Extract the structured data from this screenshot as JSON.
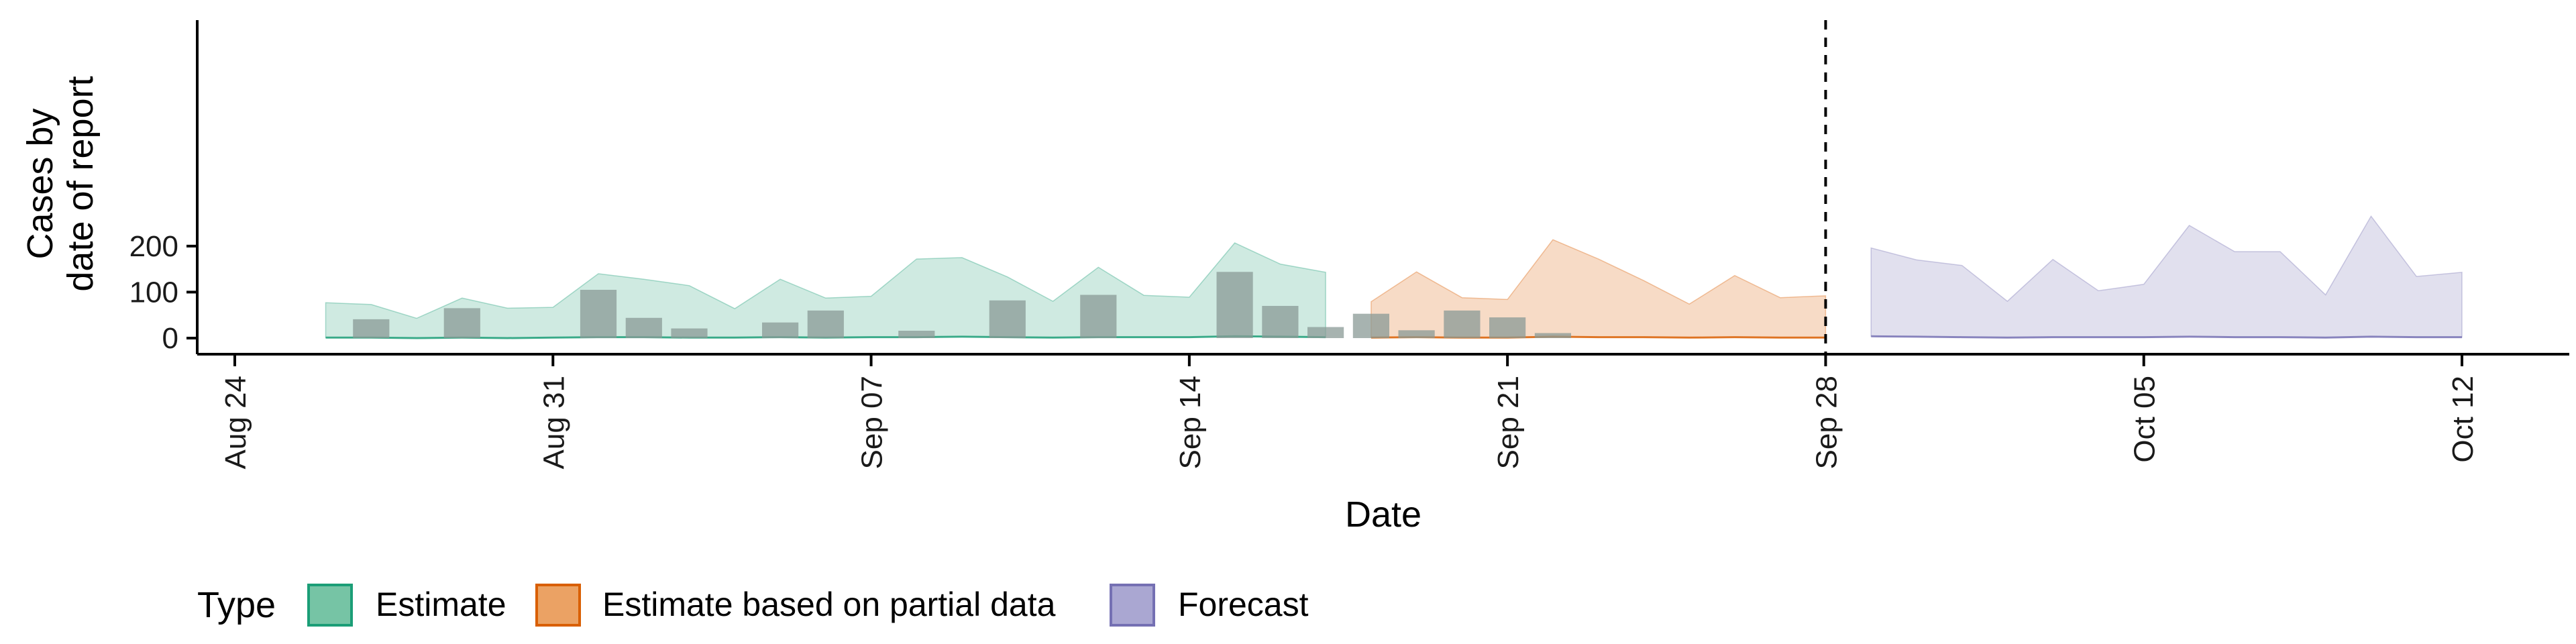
{
  "chart_data": {
    "type": "area",
    "xlabel": "Date",
    "ylabel_lines": [
      "Cases by",
      "date of report"
    ],
    "x_ticks": [
      {
        "date": "2020-08-24",
        "label": "Aug 24"
      },
      {
        "date": "2020-08-31",
        "label": "Aug 31"
      },
      {
        "date": "2020-09-07",
        "label": "Sep 07"
      },
      {
        "date": "2020-09-14",
        "label": "Sep 14"
      },
      {
        "date": "2020-09-21",
        "label": "Sep 21"
      },
      {
        "date": "2020-09-28",
        "label": "Sep 28"
      },
      {
        "date": "2020-10-05",
        "label": "Oct 05"
      },
      {
        "date": "2020-10-12",
        "label": "Oct 12"
      }
    ],
    "y_ticks": [
      0,
      100,
      200
    ],
    "xlim": [
      "2020-08-24",
      "2020-10-12"
    ],
    "ylim": [
      0,
      280
    ],
    "forecast_date": "2020-09-28",
    "legend_title": "Type",
    "legend_position": "bottom",
    "series": [
      {
        "name": "Estimate",
        "color": "#1b9e77",
        "fill": "#cfeae1",
        "dates": [
          "2020-08-26",
          "2020-08-27",
          "2020-08-28",
          "2020-08-29",
          "2020-08-30",
          "2020-08-31",
          "2020-09-01",
          "2020-09-02",
          "2020-09-03",
          "2020-09-04",
          "2020-09-05",
          "2020-09-06",
          "2020-09-07",
          "2020-09-08",
          "2020-09-09",
          "2020-09-10",
          "2020-09-11",
          "2020-09-12",
          "2020-09-13",
          "2020-09-14",
          "2020-09-15",
          "2020-09-16",
          "2020-09-17"
        ],
        "upper": [
          77,
          73,
          43,
          87,
          65,
          67,
          140,
          128,
          114,
          64,
          128,
          87,
          91,
          172,
          175,
          133,
          80,
          154,
          93,
          89,
          207,
          161,
          143
        ],
        "lower": [
          1,
          1,
          0,
          1,
          0,
          1,
          2,
          2,
          1,
          1,
          2,
          1,
          2,
          2,
          3,
          2,
          1,
          2,
          2,
          2,
          4,
          3,
          2
        ]
      },
      {
        "name": "Estimate based on partial data",
        "color": "#d95f02",
        "fill": "#f7dbc6",
        "dates": [
          "2020-09-18",
          "2020-09-19",
          "2020-09-20",
          "2020-09-21",
          "2020-09-22",
          "2020-09-23",
          "2020-09-24",
          "2020-09-25",
          "2020-09-26",
          "2020-09-27",
          "2020-09-28"
        ],
        "upper": [
          79,
          144,
          88,
          84,
          214,
          172,
          125,
          74,
          136,
          88,
          92
        ],
        "lower": [
          1,
          2,
          1,
          1,
          3,
          2,
          2,
          1,
          2,
          1,
          1
        ]
      },
      {
        "name": "Forecast",
        "color": "#7570b3",
        "fill": "#e1e0ee",
        "dates": [
          "2020-09-29",
          "2020-09-30",
          "2020-10-01",
          "2020-10-02",
          "2020-10-03",
          "2020-10-04",
          "2020-10-05",
          "2020-10-06",
          "2020-10-07",
          "2020-10-08",
          "2020-10-09",
          "2020-10-10",
          "2020-10-11",
          "2020-10-12"
        ],
        "upper": [
          196,
          170,
          158,
          80,
          171,
          103,
          117,
          245,
          188,
          188,
          94,
          265,
          134,
          143
        ],
        "lower": [
          4,
          3,
          2,
          1,
          2,
          2,
          2,
          3,
          2,
          2,
          1,
          3,
          2,
          2
        ]
      }
    ],
    "observed_cases": {
      "color": "#8a9a96",
      "dates": [
        "2020-08-26",
        "2020-08-27",
        "2020-08-28",
        "2020-08-29",
        "2020-08-30",
        "2020-08-31",
        "2020-09-01",
        "2020-09-02",
        "2020-09-03",
        "2020-09-04",
        "2020-09-05",
        "2020-09-06",
        "2020-09-07",
        "2020-09-08",
        "2020-09-09",
        "2020-09-10",
        "2020-09-11",
        "2020-09-12",
        "2020-09-13",
        "2020-09-14",
        "2020-09-15",
        "2020-09-16",
        "2020-09-17",
        "2020-09-18",
        "2020-09-19",
        "2020-09-20",
        "2020-09-21",
        "2020-09-22",
        "2020-09-23",
        "2020-09-24",
        "2020-09-25",
        "2020-09-26",
        "2020-09-27",
        "2020-09-28"
      ],
      "values": [
        0,
        41,
        0,
        65,
        0,
        0,
        105,
        44,
        21,
        0,
        34,
        60,
        0,
        16,
        0,
        82,
        0,
        94,
        0,
        0,
        144,
        70,
        24,
        53,
        17,
        60,
        45,
        11,
        0,
        0,
        0,
        0,
        0,
        0
      ]
    }
  }
}
